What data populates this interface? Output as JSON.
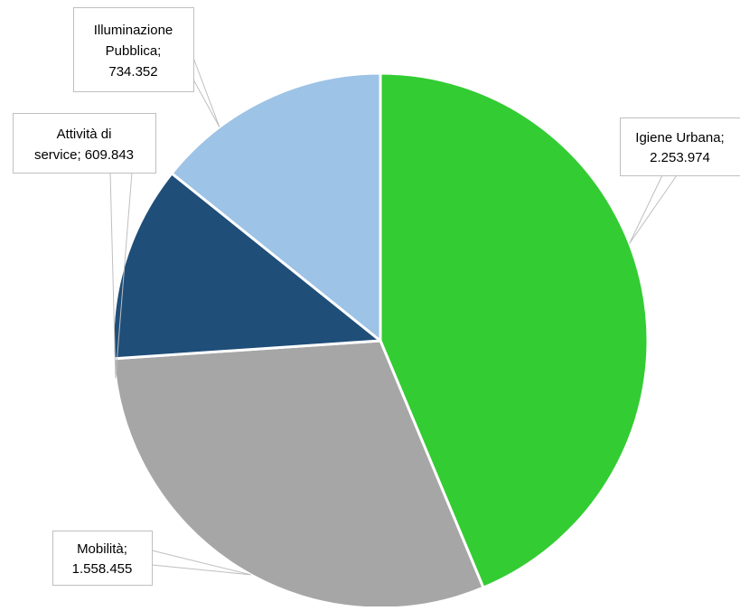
{
  "chart_data": {
    "type": "pie",
    "title": "",
    "series": [
      {
        "name": "",
        "labels": [
          "Igiene Urbana",
          "Mobilità",
          "Attività di service",
          "Illuminazione Pubblica"
        ],
        "values": [
          2253974,
          1558455,
          609843,
          734352
        ],
        "display_values": [
          "2.253.974",
          "1.558.455",
          "609.843",
          "734.352"
        ],
        "colors": [
          "#33cc33",
          "#a6a6a6",
          "#1f4e79",
          "#9dc3e6"
        ]
      }
    ],
    "start_angle_deg": 0,
    "direction": "clockwise",
    "legend": "none",
    "data_labels": [
      {
        "lines": [
          "Igiene Urbana;",
          "2.253.974"
        ]
      },
      {
        "lines": [
          "Mobilità;",
          "1.558.455"
        ]
      },
      {
        "lines": [
          "Attività di",
          "service; 609.843"
        ]
      },
      {
        "lines": [
          "Illuminazione",
          "Pubblica;",
          "734.352"
        ]
      }
    ]
  }
}
